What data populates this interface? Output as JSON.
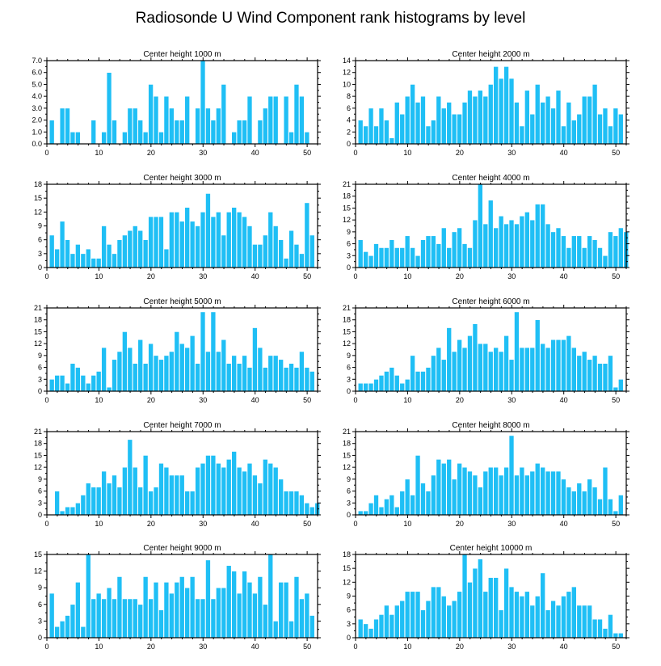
{
  "figure": {
    "title": "Radiosonde U Wind Component rank histograms by level"
  },
  "colors": {
    "bar": "#1fbff5",
    "frame": "#000000",
    "background": "#ffffff"
  },
  "chart_data": [
    {
      "type": "bar",
      "title": "Center height 1000 m",
      "ylim": [
        0,
        7
      ],
      "yticks": [
        "0.0",
        "1.0",
        "2.0",
        "3.0",
        "4.0",
        "5.0",
        "6.0",
        "7.0"
      ],
      "xlim": [
        0,
        52
      ],
      "xticks": [
        0,
        10,
        20,
        30,
        40,
        50
      ],
      "values": [
        2,
        0,
        3,
        3,
        1,
        1,
        0,
        0,
        2,
        0,
        1,
        6,
        2,
        0,
        1,
        3,
        3,
        2,
        1,
        5,
        4,
        1,
        4,
        3,
        2,
        2,
        4,
        0,
        3,
        7,
        3,
        2,
        3,
        5,
        0,
        1,
        2,
        2,
        4,
        0,
        2,
        3,
        4,
        4,
        0,
        4,
        1,
        5,
        4,
        1
      ]
    },
    {
      "type": "bar",
      "title": "Center height 2000 m",
      "ylim": [
        0,
        14
      ],
      "yticks": [
        "0",
        "2",
        "4",
        "6",
        "8",
        "10",
        "12",
        "14"
      ],
      "xlim": [
        0,
        52
      ],
      "xticks": [
        0,
        10,
        20,
        30,
        40,
        50
      ],
      "values": [
        4,
        3,
        6,
        3,
        6,
        4,
        1,
        7,
        5,
        8,
        10,
        7,
        8,
        3,
        4,
        8,
        6,
        7,
        5,
        5,
        7,
        9,
        8,
        9,
        8,
        10,
        13,
        11,
        13,
        11,
        7,
        3,
        9,
        5,
        10,
        7,
        8,
        6,
        9,
        3,
        7,
        4,
        5,
        8,
        8,
        10,
        5,
        6,
        3,
        6,
        5
      ]
    },
    {
      "type": "bar",
      "title": "Center height 3000 m",
      "ylim": [
        0,
        18
      ],
      "yticks": [
        "0",
        "3",
        "6",
        "9",
        "12",
        "15",
        "18"
      ],
      "xlim": [
        0,
        52
      ],
      "xticks": [
        0,
        10,
        20,
        30,
        40,
        50
      ],
      "values": [
        7,
        4,
        10,
        6,
        3,
        5,
        3,
        4,
        2,
        2,
        9,
        5,
        3,
        6,
        7,
        8,
        9,
        8,
        6,
        11,
        11,
        11,
        4,
        12,
        12,
        10,
        13,
        10,
        9,
        12,
        16,
        11,
        12,
        7,
        12,
        13,
        12,
        11,
        9,
        5,
        5,
        7,
        12,
        9,
        6,
        2,
        8,
        5,
        3,
        14,
        7
      ]
    },
    {
      "type": "bar",
      "title": "Center height 4000 m",
      "ylim": [
        0,
        21
      ],
      "yticks": [
        "0",
        "3",
        "6",
        "9",
        "12",
        "15",
        "18",
        "21"
      ],
      "xlim": [
        0,
        52
      ],
      "xticks": [
        0,
        10,
        20,
        30,
        40,
        50
      ],
      "values": [
        7,
        4,
        3,
        6,
        5,
        5,
        7,
        5,
        5,
        8,
        5,
        3,
        7,
        8,
        8,
        6,
        10,
        5,
        9,
        10,
        6,
        5,
        12,
        21,
        11,
        17,
        10,
        13,
        11,
        12,
        11,
        13,
        14,
        12,
        16,
        16,
        11,
        9,
        10,
        8,
        5,
        8,
        8,
        5,
        8,
        7,
        5,
        3,
        9,
        8,
        10,
        9
      ]
    },
    {
      "type": "bar",
      "title": "Center height 5000 m",
      "ylim": [
        0,
        21
      ],
      "yticks": [
        "0",
        "3",
        "6",
        "9",
        "12",
        "15",
        "18",
        "21"
      ],
      "xlim": [
        0,
        52
      ],
      "xticks": [
        0,
        10,
        20,
        30,
        40,
        50
      ],
      "values": [
        3,
        4,
        4,
        2,
        7,
        6,
        4,
        2,
        4,
        5,
        11,
        1,
        8,
        10,
        15,
        11,
        7,
        13,
        7,
        12,
        9,
        8,
        9,
        10,
        15,
        12,
        11,
        14,
        7,
        20,
        10,
        20,
        10,
        13,
        7,
        9,
        7,
        9,
        6,
        16,
        11,
        6,
        9,
        9,
        8,
        6,
        7,
        6,
        10,
        6,
        5
      ]
    },
    {
      "type": "bar",
      "title": "Center height 6000 m",
      "ylim": [
        0,
        21
      ],
      "yticks": [
        "0",
        "3",
        "6",
        "9",
        "12",
        "15",
        "18",
        "21"
      ],
      "xlim": [
        0,
        52
      ],
      "xticks": [
        0,
        10,
        20,
        30,
        40,
        50
      ],
      "values": [
        2,
        2,
        2,
        3,
        4,
        5,
        6,
        4,
        2,
        3,
        9,
        5,
        5,
        6,
        9,
        11,
        8,
        16,
        10,
        13,
        11,
        14,
        17,
        12,
        12,
        10,
        11,
        10,
        14,
        8,
        20,
        11,
        11,
        11,
        18,
        12,
        11,
        13,
        13,
        13,
        14,
        11,
        9,
        10,
        8,
        9,
        7,
        7,
        9,
        1,
        3
      ]
    },
    {
      "type": "bar",
      "title": "Center height 7000 m",
      "ylim": [
        0,
        21
      ],
      "yticks": [
        "0",
        "3",
        "6",
        "9",
        "12",
        "15",
        "18",
        "21"
      ],
      "xlim": [
        0,
        52
      ],
      "xticks": [
        0,
        10,
        20,
        30,
        40,
        50
      ],
      "values": [
        0,
        6,
        1,
        2,
        2,
        3,
        5,
        8,
        7,
        7,
        11,
        8,
        10,
        7,
        12,
        19,
        12,
        7,
        15,
        6,
        7,
        13,
        12,
        10,
        10,
        10,
        6,
        6,
        12,
        13,
        15,
        15,
        13,
        12,
        14,
        16,
        12,
        11,
        13,
        10,
        8,
        14,
        13,
        12,
        9,
        6,
        6,
        6,
        5,
        3,
        2,
        3
      ]
    },
    {
      "type": "bar",
      "title": "Center height 8000 m",
      "ylim": [
        0,
        21
      ],
      "yticks": [
        "0",
        "3",
        "6",
        "9",
        "12",
        "15",
        "18",
        "21"
      ],
      "xlim": [
        0,
        52
      ],
      "xticks": [
        0,
        10,
        20,
        30,
        40,
        50
      ],
      "values": [
        1,
        1,
        3,
        5,
        2,
        4,
        5,
        2,
        6,
        9,
        5,
        15,
        8,
        6,
        10,
        14,
        13,
        14,
        9,
        13,
        12,
        11,
        10,
        7,
        11,
        12,
        12,
        10,
        12,
        20,
        10,
        12,
        10,
        11,
        13,
        12,
        11,
        11,
        11,
        9,
        7,
        6,
        8,
        6,
        9,
        7,
        4,
        12,
        4,
        1,
        5
      ]
    },
    {
      "type": "bar",
      "title": "Center height 9000 m",
      "ylim": [
        0,
        15
      ],
      "yticks": [
        "0",
        "3",
        "6",
        "9",
        "12",
        "15"
      ],
      "xlim": [
        0,
        52
      ],
      "xticks": [
        0,
        10,
        20,
        30,
        40,
        50
      ],
      "values": [
        8,
        2,
        3,
        4,
        6,
        10,
        2,
        15,
        7,
        8,
        7,
        9,
        7,
        11,
        7,
        7,
        7,
        6,
        11,
        7,
        10,
        5,
        10,
        8,
        10,
        11,
        9,
        11,
        7,
        7,
        14,
        7,
        9,
        9,
        13,
        12,
        8,
        12,
        10,
        8,
        11,
        6,
        15,
        3,
        10,
        10,
        3,
        11,
        7,
        8,
        4
      ]
    },
    {
      "type": "bar",
      "title": "Center height 10000 m",
      "ylim": [
        0,
        18
      ],
      "yticks": [
        "0",
        "3",
        "6",
        "9",
        "12",
        "15",
        "18"
      ],
      "xlim": [
        0,
        52
      ],
      "xticks": [
        0,
        10,
        20,
        30,
        40,
        50
      ],
      "values": [
        4,
        3,
        2,
        4,
        5,
        7,
        5,
        7,
        8,
        10,
        10,
        10,
        6,
        8,
        11,
        11,
        9,
        7,
        8,
        10,
        18,
        12,
        15,
        17,
        10,
        13,
        13,
        6,
        15,
        11,
        10,
        9,
        10,
        7,
        9,
        14,
        6,
        8,
        7,
        9,
        10,
        11,
        7,
        7,
        7,
        4,
        4,
        2,
        5,
        1,
        1
      ]
    }
  ]
}
